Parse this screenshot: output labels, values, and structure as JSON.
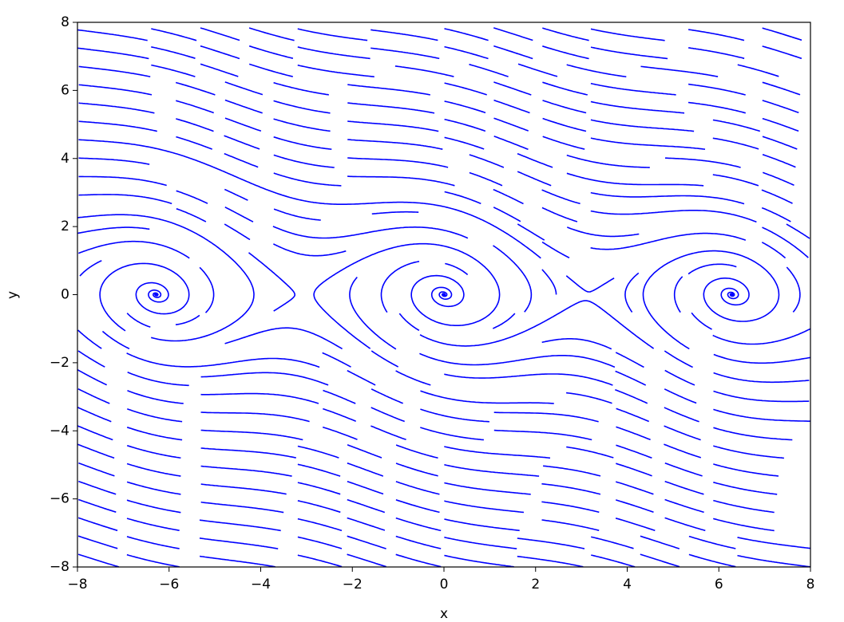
{
  "chart_data": {
    "type": "streamplot",
    "xlabel": "x",
    "ylabel": "y",
    "color": "#0000ff",
    "xlim": [
      -8,
      8
    ],
    "ylim": [
      -8,
      8
    ],
    "xticks": [
      {
        "value": -8,
        "label": "−8"
      },
      {
        "value": -6,
        "label": "−6"
      },
      {
        "value": -4,
        "label": "−4"
      },
      {
        "value": -2,
        "label": "−2"
      },
      0,
      2,
      4,
      6,
      8
    ],
    "yticks": [
      {
        "value": -8,
        "label": "−8"
      },
      {
        "value": -6,
        "label": "−6"
      },
      {
        "value": -4,
        "label": "−4"
      },
      {
        "value": -2,
        "label": "−2"
      },
      0,
      2,
      4,
      6,
      8
    ]
  }
}
